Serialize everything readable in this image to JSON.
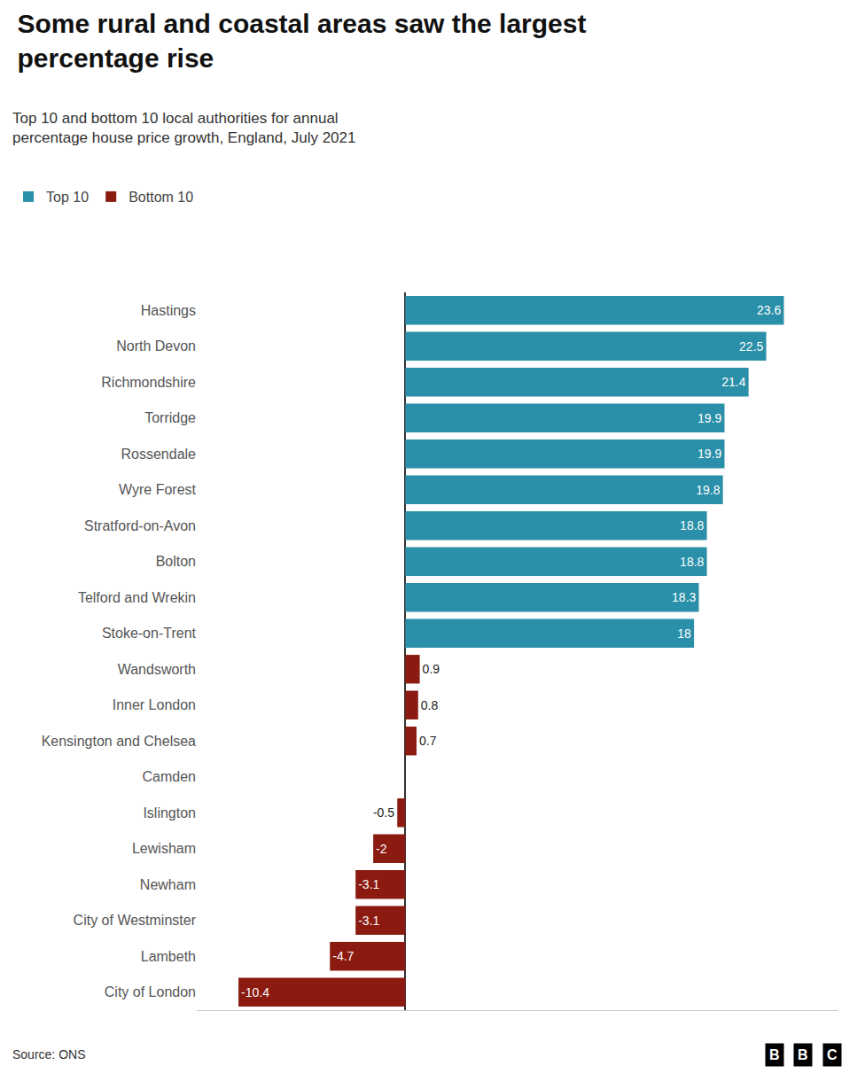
{
  "chart_data": {
    "type": "bar",
    "orientation": "horizontal",
    "title": "Some rural and coastal areas saw the largest\npercentage rise",
    "subtitle": "Top 10 and bottom 10 local authorities for annual\npercentage house price growth, England, July 2021",
    "source": "Source: ONS",
    "annotations": [
      "B",
      "B",
      "C"
    ],
    "categories": [
      "Hastings",
      "North Devon",
      "Richmondshire",
      "Torridge",
      "Rossendale",
      "Wyre Forest",
      "Stratford-on-Avon",
      "Bolton",
      "Telford and Wrekin",
      "Stoke-on-Trent",
      "Wandsworth",
      "Inner London",
      "Kensington and Chelsea",
      "Camden",
      "Islington",
      "Lewisham",
      "Newham",
      "City of Westminster",
      "Lambeth",
      "City of London"
    ],
    "series": [
      {
        "name": "Top 10",
        "color": "#2a8fa8",
        "values": [
          23.6,
          22.5,
          21.4,
          19.9,
          19.9,
          19.8,
          18.8,
          18.8,
          18.3,
          18,
          null,
          null,
          null,
          null,
          null,
          null,
          null,
          null,
          null,
          null
        ]
      },
      {
        "name": "Bottom 10",
        "color": "#8b1a10",
        "values": [
          null,
          null,
          null,
          null,
          null,
          null,
          null,
          null,
          null,
          null,
          0.9,
          0.8,
          0.7,
          0,
          -0.5,
          -2,
          -3.1,
          -3.1,
          -4.7,
          -10.4
        ]
      }
    ],
    "xlim": [
      -13,
      27
    ],
    "data_labels": true,
    "tick_labels": "y",
    "grid": false,
    "legend": "upper left"
  }
}
